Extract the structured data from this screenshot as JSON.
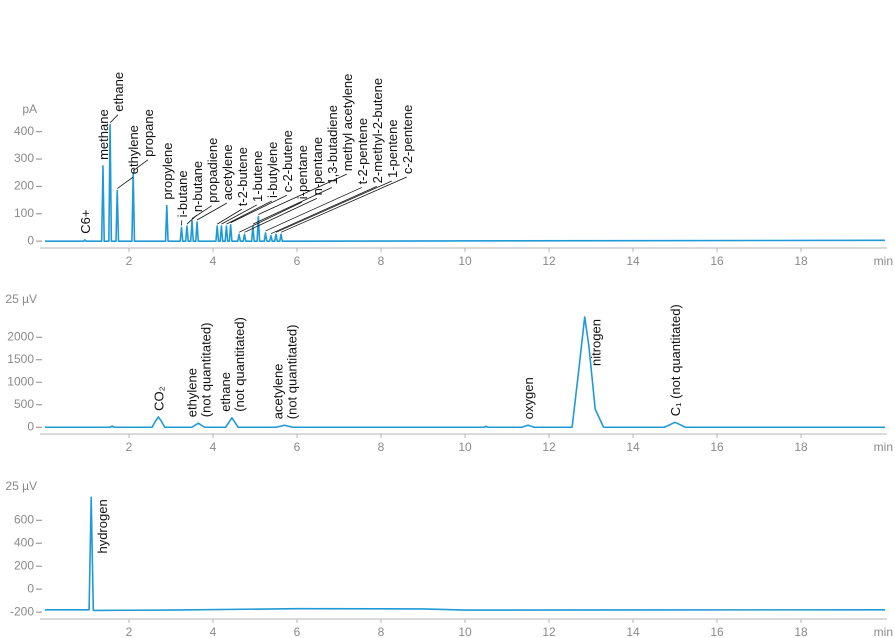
{
  "chart_data": [
    {
      "type": "line",
      "y_unit": "pA",
      "x_unit": "min",
      "color": "#1f9ad6",
      "xlim": [
        -0.2,
        20
      ],
      "xticks": [
        2,
        4,
        6,
        8,
        10,
        12,
        14,
        16,
        18
      ],
      "ylim": [
        -25,
        450
      ],
      "yticks": [
        0,
        100,
        200,
        300,
        400
      ],
      "x": [
        0,
        0.92,
        0.95,
        0.98,
        1.35,
        1.38,
        1.41,
        1.52,
        1.55,
        1.58,
        1.69,
        1.72,
        1.75,
        2.07,
        2.1,
        2.13,
        2.87,
        2.9,
        2.93,
        3.22,
        3.25,
        3.28,
        3.35,
        3.38,
        3.41,
        3.47,
        3.5,
        3.53,
        3.59,
        3.62,
        3.65,
        4.07,
        4.1,
        4.13,
        4.17,
        4.2,
        4.23,
        4.29,
        4.32,
        4.35,
        4.39,
        4.42,
        4.45,
        4.59,
        4.62,
        4.65,
        4.72,
        4.75,
        4.78,
        4.92,
        4.95,
        4.98,
        5.05,
        5.08,
        5.11,
        5.22,
        5.25,
        5.28,
        5.35,
        5.38,
        5.41,
        5.47,
        5.5,
        5.53,
        5.59,
        5.62,
        5.65,
        20
      ],
      "values": [
        0,
        0,
        5,
        0,
        0,
        275,
        0,
        0,
        425,
        0,
        0,
        185,
        0,
        0,
        250,
        0,
        0,
        130,
        0,
        0,
        50,
        0,
        0,
        55,
        0,
        0,
        75,
        0,
        0,
        70,
        0,
        0,
        55,
        0,
        0,
        55,
        0,
        0,
        55,
        0,
        0,
        60,
        0,
        0,
        25,
        0,
        0,
        25,
        0,
        0,
        55,
        0,
        0,
        90,
        0,
        0,
        30,
        0,
        0,
        20,
        0,
        0,
        25,
        0,
        0,
        25,
        0,
        3
      ],
      "annotations": [
        {
          "text": "C6+",
          "x": 0.95
        },
        {
          "text": "methane",
          "x": 1.38
        },
        {
          "text": "ethane",
          "x": 1.55
        },
        {
          "text": "ethylene",
          "x": 1.72
        },
        {
          "text": "propane",
          "x": 2.1
        },
        {
          "text": "propylene",
          "x": 2.9
        },
        {
          "text": "i-butane",
          "x": 3.25
        },
        {
          "text": "n-butane",
          "x": 3.38
        },
        {
          "text": "propadiene",
          "x": 3.5
        },
        {
          "text": "acetylene",
          "x": 3.62
        },
        {
          "text": "t-2-butene",
          "x": 4.1
        },
        {
          "text": "1-butene",
          "x": 4.2
        },
        {
          "text": "i-butylene",
          "x": 4.32
        },
        {
          "text": "c-2-butene",
          "x": 4.42
        },
        {
          "text": "i-pentane",
          "x": 4.62
        },
        {
          "text": "n-pentane",
          "x": 4.75
        },
        {
          "text": "1,3-butadiene",
          "x": 4.95
        },
        {
          "text": "methyl acetylene",
          "x": 5.08
        },
        {
          "text": "t-2-pentene",
          "x": 5.25
        },
        {
          "text": "2-methyl-2-butene",
          "x": 5.38
        },
        {
          "text": "1-pentene",
          "x": 5.5
        },
        {
          "text": "c-2-pentene",
          "x": 5.62
        }
      ]
    },
    {
      "type": "line",
      "y_unit": "25 µV",
      "x_unit": "min",
      "color": "#1f9ad6",
      "xlim": [
        -0.2,
        20
      ],
      "xticks": [
        2,
        4,
        6,
        8,
        10,
        12,
        14,
        16,
        18
      ],
      "ylim": [
        -150,
        2650
      ],
      "yticks": [
        0,
        500,
        1000,
        1500,
        2000
      ],
      "x": [
        0,
        1.55,
        1.6,
        1.65,
        2.55,
        2.62,
        2.7,
        2.78,
        2.85,
        3.5,
        3.65,
        3.8,
        4.3,
        4.38,
        4.45,
        4.52,
        4.6,
        5.5,
        5.7,
        5.9,
        10.45,
        10.5,
        10.55,
        11.35,
        11.5,
        11.65,
        12.55,
        12.7,
        12.85,
        12.95,
        13.1,
        13.3,
        14.75,
        15.0,
        15.25,
        20
      ],
      "values": [
        0,
        0,
        25,
        0,
        0,
        120,
        230,
        120,
        0,
        0,
        90,
        0,
        0,
        110,
        210,
        110,
        0,
        0,
        45,
        0,
        0,
        20,
        0,
        0,
        45,
        0,
        0,
        1200,
        2450,
        1800,
        400,
        0,
        0,
        110,
        0,
        0
      ],
      "annotations": [
        {
          "text": "CO₂",
          "x": 2.7
        },
        {
          "text": [
            "ethylene",
            "(not quantitated)"
          ],
          "x": 3.65
        },
        {
          "text": [
            "ethane",
            "(not quantitated)"
          ],
          "x": 4.45
        },
        {
          "text": [
            "acetylene",
            "(not quantitated)"
          ],
          "x": 5.7
        },
        {
          "text": "oxygen",
          "x": 11.5
        },
        {
          "text": "nitrogen",
          "x": 12.85
        },
        {
          "text": "C₁ (not quantitated)",
          "x": 15.0
        }
      ]
    },
    {
      "type": "line",
      "y_unit": "25 µV",
      "x_unit": "min",
      "color": "#1f9ad6",
      "xlim": [
        -0.2,
        20
      ],
      "xticks": [
        2,
        4,
        6,
        8,
        10,
        12,
        14,
        16,
        18
      ],
      "ylim": [
        -260,
        820
      ],
      "yticks": [
        -200,
        0,
        200,
        400,
        600
      ],
      "x": [
        0,
        1.05,
        1.1,
        1.15,
        1.2,
        3,
        6,
        9,
        10,
        20
      ],
      "values": [
        -180,
        -180,
        800,
        -185,
        -185,
        -182,
        -170,
        -172,
        -182,
        -180
      ],
      "annotations": [
        {
          "text": "hydrogen",
          "x": 1.1
        }
      ]
    }
  ]
}
